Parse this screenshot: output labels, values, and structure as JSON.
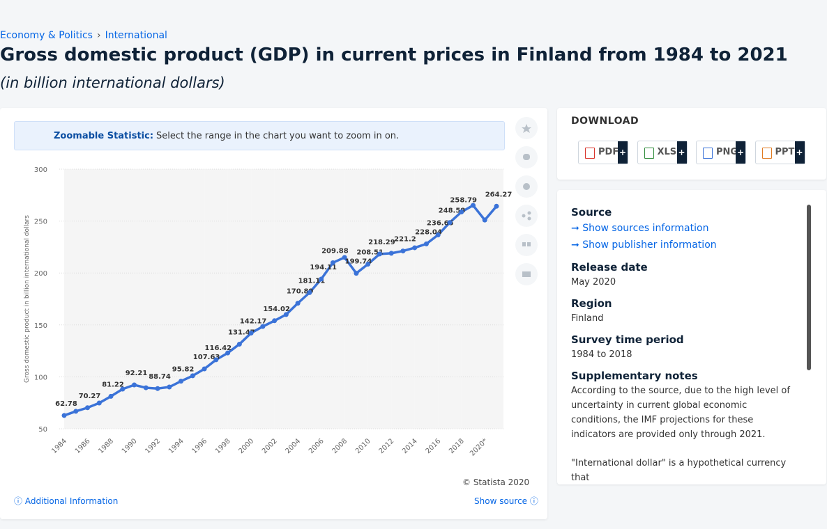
{
  "breadcrumb": [
    "Economy & Politics",
    "International"
  ],
  "title": "Gross domestic product (GDP) in current prices in Finland from 1984 to 2021",
  "subtitle": "(in billion international dollars)",
  "zoom_banner": {
    "label": "Zoomable Statistic:",
    "text": "Select the range in the chart you want to zoom in on."
  },
  "chart_data": {
    "type": "line",
    "y_axis_label": "Gross domestic product in billion international dollars",
    "categories": [
      "1984",
      null,
      "1986",
      null,
      "1988",
      null,
      "1990",
      null,
      "1992",
      null,
      "1994",
      null,
      "1996",
      null,
      "1998",
      null,
      "2000",
      null,
      "2002",
      null,
      "2004",
      null,
      "2006",
      null,
      "2008",
      null,
      "2010",
      null,
      "2012",
      null,
      "2014",
      null,
      "2016",
      null,
      "2018",
      null,
      "2020*",
      null
    ],
    "values": [
      62.78,
      66.8,
      70.27,
      74.8,
      81.22,
      88.2,
      92.21,
      89.5,
      88.74,
      90.2,
      95.82,
      101,
      107.63,
      116.42,
      123,
      131.47,
      142.17,
      148.5,
      154.02,
      160,
      170.89,
      181.11,
      194.11,
      209.88,
      215,
      199.74,
      208.51,
      218.29,
      219,
      221.2,
      224.3,
      228.04,
      236.65,
      248.58,
      258.79,
      265.1,
      251,
      264.27
    ],
    "value_labels": [
      "62.78",
      null,
      "70.27",
      null,
      "81.22",
      null,
      "92.21",
      null,
      "88.74",
      null,
      "95.82",
      null,
      "107.63",
      "116.42",
      null,
      "131.47",
      "142.17",
      null,
      "154.02",
      null,
      "170.89",
      "181.11",
      "194.11",
      "209.88",
      null,
      "199.74",
      "208.51",
      "218.29",
      null,
      "221.2",
      null,
      "228.04",
      "236.65",
      "248.58",
      "258.79",
      null,
      null,
      "264.27"
    ],
    "color": "#3b73d8",
    "ylim": [
      50,
      300
    ],
    "yticks": [
      50,
      100,
      150,
      200,
      250,
      300
    ],
    "grid": true
  },
  "footer": {
    "copyright": "© Statista 2020",
    "additional": "Additional Information",
    "show_source": "Show source"
  },
  "download": {
    "heading": "DOWNLOAD",
    "buttons": [
      "PDF",
      "XLS",
      "PNG",
      "PPT"
    ],
    "add": "+"
  },
  "details": {
    "source_heading": "Source",
    "links": [
      "Show sources information",
      "Show publisher information"
    ],
    "sections": [
      {
        "heading": "Release date",
        "text": "May 2020"
      },
      {
        "heading": "Region",
        "text": "Finland"
      },
      {
        "heading": "Survey time period",
        "text": "1984 to 2018"
      },
      {
        "heading": "Supplementary notes",
        "text": "According to the source, due to the high level of uncertainty in current global economic conditions, the IMF projections for these indicators are provided only through 2021."
      }
    ],
    "more": "\"International dollar\" is a hypothetical currency that"
  }
}
